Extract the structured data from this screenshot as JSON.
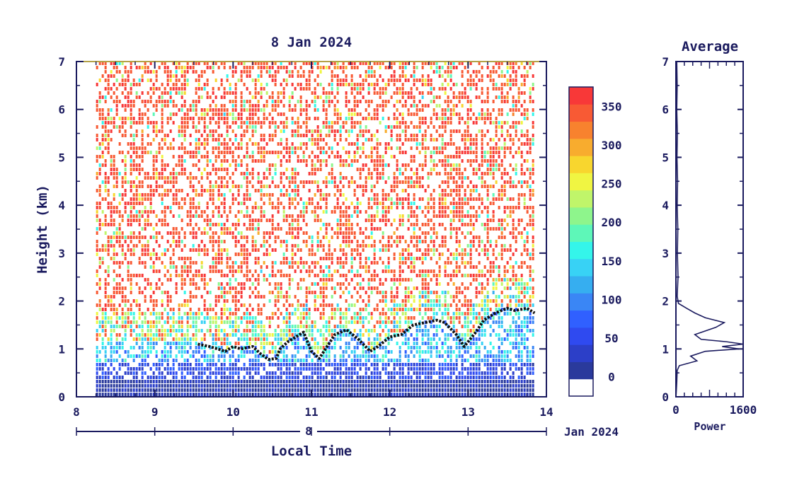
{
  "chart_data": [
    {
      "type": "heatmap",
      "title": "8 Jan 2024",
      "xlabel": "Local Time",
      "ylabel": "Height (km)",
      "xlim": [
        8,
        14
      ],
      "ylim": [
        0,
        7
      ],
      "x_ticks": [
        "8",
        "9",
        "10",
        "11",
        "12",
        "13",
        "14"
      ],
      "y_ticks": [
        "0",
        "1",
        "2",
        "3",
        "4",
        "5",
        "6",
        "7"
      ],
      "date_axis": {
        "day_label": "8",
        "month_label": "Jan 2024"
      },
      "data_start_hour": 8.25,
      "data_end_hour": 13.85,
      "colorbar": {
        "tick_labels": [
          "0",
          "50",
          "100",
          "150",
          "200",
          "250",
          "300",
          "350"
        ],
        "tick_values": [
          0,
          50,
          100,
          150,
          200,
          250,
          300,
          350
        ],
        "range": [
          -25,
          375
        ],
        "colors": [
          "#ffffff",
          "#2a3a9c",
          "#2c3fc8",
          "#2f4af0",
          "#3060ff",
          "#3a86f5",
          "#36aef0",
          "#38d2f5",
          "#34f5ea",
          "#5ef7b8",
          "#8ef58c",
          "#c0f56a",
          "#f0f542",
          "#f8d62e",
          "#f8ac2e",
          "#f8822e",
          "#f85a34",
          "#f83838"
        ]
      },
      "boundary_layer_top_km": [
        {
          "x": 9.55,
          "y": 1.1
        },
        {
          "x": 9.7,
          "y": 1.05
        },
        {
          "x": 9.8,
          "y": 1.0
        },
        {
          "x": 9.9,
          "y": 0.95
        },
        {
          "x": 10.0,
          "y": 1.05
        },
        {
          "x": 10.1,
          "y": 1.0
        },
        {
          "x": 10.25,
          "y": 1.05
        },
        {
          "x": 10.35,
          "y": 0.9
        },
        {
          "x": 10.45,
          "y": 0.78
        },
        {
          "x": 10.55,
          "y": 0.8
        },
        {
          "x": 10.6,
          "y": 1.0
        },
        {
          "x": 10.7,
          "y": 1.15
        },
        {
          "x": 10.8,
          "y": 1.25
        },
        {
          "x": 10.9,
          "y": 1.35
        },
        {
          "x": 11.0,
          "y": 0.95
        },
        {
          "x": 11.1,
          "y": 0.8
        },
        {
          "x": 11.2,
          "y": 1.05
        },
        {
          "x": 11.3,
          "y": 1.3
        },
        {
          "x": 11.45,
          "y": 1.4
        },
        {
          "x": 11.6,
          "y": 1.2
        },
        {
          "x": 11.75,
          "y": 0.95
        },
        {
          "x": 11.85,
          "y": 1.05
        },
        {
          "x": 12.0,
          "y": 1.25
        },
        {
          "x": 12.15,
          "y": 1.3
        },
        {
          "x": 12.3,
          "y": 1.5
        },
        {
          "x": 12.45,
          "y": 1.55
        },
        {
          "x": 12.6,
          "y": 1.6
        },
        {
          "x": 12.7,
          "y": 1.55
        },
        {
          "x": 12.85,
          "y": 1.3
        },
        {
          "x": 12.95,
          "y": 1.05
        },
        {
          "x": 13.1,
          "y": 1.35
        },
        {
          "x": 13.2,
          "y": 1.6
        },
        {
          "x": 13.35,
          "y": 1.75
        },
        {
          "x": 13.5,
          "y": 1.85
        },
        {
          "x": 13.6,
          "y": 1.8
        },
        {
          "x": 13.75,
          "y": 1.85
        },
        {
          "x": 13.85,
          "y": 1.75
        }
      ]
    },
    {
      "type": "line",
      "title": "Average",
      "xlabel": "Power",
      "xlim": [
        0,
        1600
      ],
      "ylim": [
        0,
        7
      ],
      "x_ticks": [
        "0",
        "1600"
      ],
      "y_ticks": [
        "0",
        "1",
        "2",
        "3",
        "4",
        "5",
        "6",
        "7"
      ],
      "series": [
        {
          "points": [
            {
              "x": 5,
              "y": 0.05
            },
            {
              "x": 20,
              "y": 0.3
            },
            {
              "x": 30,
              "y": 0.55
            },
            {
              "x": 80,
              "y": 0.65
            },
            {
              "x": 500,
              "y": 0.75
            },
            {
              "x": 350,
              "y": 0.85
            },
            {
              "x": 700,
              "y": 0.95
            },
            {
              "x": 1500,
              "y": 1.0
            },
            {
              "x": 1100,
              "y": 1.05
            },
            {
              "x": 1600,
              "y": 1.1
            },
            {
              "x": 1200,
              "y": 1.15
            },
            {
              "x": 600,
              "y": 1.2
            },
            {
              "x": 450,
              "y": 1.3
            },
            {
              "x": 950,
              "y": 1.45
            },
            {
              "x": 1150,
              "y": 1.55
            },
            {
              "x": 700,
              "y": 1.65
            },
            {
              "x": 450,
              "y": 1.75
            },
            {
              "x": 250,
              "y": 1.85
            },
            {
              "x": 60,
              "y": 1.95
            },
            {
              "x": 30,
              "y": 2.1
            },
            {
              "x": 50,
              "y": 2.5
            },
            {
              "x": 35,
              "y": 3.0
            },
            {
              "x": 45,
              "y": 3.5
            },
            {
              "x": 30,
              "y": 4.0
            },
            {
              "x": 40,
              "y": 4.5
            },
            {
              "x": 25,
              "y": 5.0
            },
            {
              "x": 35,
              "y": 5.5
            },
            {
              "x": 20,
              "y": 6.0
            },
            {
              "x": 30,
              "y": 6.5
            },
            {
              "x": 20,
              "y": 7.0
            }
          ]
        }
      ]
    }
  ]
}
